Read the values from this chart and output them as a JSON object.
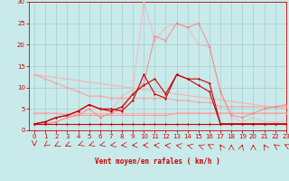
{
  "xlabel": "Vent moyen/en rafales ( km/h )",
  "xlim": [
    -0.5,
    23
  ],
  "ylim": [
    0,
    30
  ],
  "yticks": [
    0,
    5,
    10,
    15,
    20,
    25,
    30
  ],
  "xticks": [
    0,
    1,
    2,
    3,
    4,
    5,
    6,
    7,
    8,
    9,
    10,
    11,
    12,
    13,
    14,
    15,
    16,
    17,
    18,
    19,
    20,
    21,
    22,
    23
  ],
  "background_color": "#c8eaea",
  "grid_color": "#a8cccc",
  "lines": [
    {
      "x": [
        0,
        1,
        2,
        3,
        4,
        5,
        6,
        7,
        8,
        9,
        10,
        11,
        12,
        13,
        14,
        15,
        16,
        17,
        18,
        19,
        20,
        21,
        22,
        23
      ],
      "y": [
        1.5,
        1.5,
        1.5,
        1.5,
        1.5,
        1.5,
        1.5,
        1.5,
        1.5,
        1.5,
        1.5,
        1.5,
        1.5,
        1.5,
        1.5,
        1.5,
        1.5,
        1.5,
        1.5,
        1.5,
        1.5,
        1.5,
        1.5,
        1.5
      ],
      "color": "#cc0000",
      "lw": 0.8,
      "marker": "D",
      "ms": 1.5,
      "alpha": 1.0,
      "zorder": 5
    },
    {
      "x": [
        0,
        1,
        2,
        3,
        4,
        5,
        6,
        7,
        8,
        9,
        10,
        11,
        12,
        13,
        14,
        15,
        16,
        17,
        18,
        19,
        20,
        21,
        22,
        23
      ],
      "y": [
        1.5,
        2.0,
        3.0,
        3.5,
        4.5,
        6.0,
        5.0,
        4.5,
        5.5,
        8.5,
        10.5,
        12.0,
        8.5,
        13.0,
        12.0,
        10.5,
        9.0,
        1.5,
        1.5,
        1.5,
        1.5,
        1.5,
        1.5,
        1.5
      ],
      "color": "#cc0000",
      "lw": 0.8,
      "marker": "D",
      "ms": 1.5,
      "alpha": 1.0,
      "zorder": 5
    },
    {
      "x": [
        0,
        1,
        2,
        3,
        4,
        5,
        6,
        7,
        8,
        9,
        10,
        11,
        12,
        13,
        14,
        15,
        16,
        17,
        18,
        19,
        20,
        21,
        22,
        23
      ],
      "y": [
        1.5,
        2.0,
        3.0,
        3.5,
        4.5,
        6.0,
        5.0,
        5.0,
        4.5,
        7.0,
        13.0,
        8.5,
        7.5,
        13.0,
        12.0,
        12.0,
        11.0,
        1.5,
        1.5,
        1.5,
        1.5,
        1.5,
        1.5,
        1.5
      ],
      "color": "#cc0000",
      "lw": 0.8,
      "marker": "D",
      "ms": 1.5,
      "alpha": 1.0,
      "zorder": 5
    },
    {
      "x": [
        0,
        1,
        2,
        3,
        4,
        5,
        6,
        7,
        8,
        9,
        10,
        11,
        12,
        13,
        14,
        15,
        16,
        17,
        18,
        19,
        20,
        21,
        22,
        23
      ],
      "y": [
        4.0,
        4.0,
        4.0,
        3.5,
        3.5,
        3.5,
        3.5,
        3.5,
        3.5,
        3.5,
        3.5,
        3.5,
        3.5,
        4.0,
        4.0,
        4.0,
        4.0,
        4.0,
        4.0,
        4.0,
        4.0,
        4.0,
        4.0,
        4.0
      ],
      "color": "#ff9999",
      "lw": 0.8,
      "marker": "D",
      "ms": 1.5,
      "alpha": 0.9,
      "zorder": 3
    },
    {
      "x": [
        0,
        1,
        2,
        3,
        4,
        5,
        6,
        7,
        8,
        9,
        10,
        11,
        12,
        13,
        14,
        15,
        16,
        17,
        18,
        19,
        20,
        21,
        22,
        23
      ],
      "y": [
        13.0,
        12.0,
        11.0,
        10.0,
        9.0,
        8.0,
        8.0,
        7.5,
        7.5,
        7.5,
        7.5,
        7.5,
        7.5,
        7.0,
        7.0,
        6.5,
        6.5,
        5.5,
        5.5,
        5.5,
        5.5,
        5.5,
        5.5,
        5.5
      ],
      "color": "#ff9999",
      "lw": 0.8,
      "marker": "D",
      "ms": 1.5,
      "alpha": 0.9,
      "zorder": 3
    },
    {
      "x": [
        0,
        1,
        2,
        3,
        4,
        5,
        6,
        7,
        8,
        9,
        10,
        11,
        12,
        13,
        14,
        15,
        16,
        17,
        18,
        19,
        20,
        21,
        22,
        23
      ],
      "y": [
        1.5,
        1.5,
        2.0,
        3.0,
        3.5,
        5.0,
        3.0,
        4.0,
        5.0,
        8.5,
        11.0,
        22.0,
        21.0,
        25.0,
        24.0,
        25.0,
        19.5,
        9.0,
        3.5,
        3.0,
        4.0,
        5.0,
        5.5,
        6.0
      ],
      "color": "#ff7777",
      "lw": 0.8,
      "marker": "D",
      "ms": 1.5,
      "alpha": 0.75,
      "zorder": 4
    },
    {
      "x": [
        0,
        1,
        2,
        3,
        4,
        5,
        6,
        7,
        8,
        9,
        10,
        11,
        12,
        13,
        14,
        15,
        16,
        17,
        18,
        19,
        20,
        21,
        22,
        23
      ],
      "y": [
        1.5,
        1.5,
        2.0,
        3.0,
        4.0,
        5.0,
        5.0,
        4.5,
        8.0,
        9.5,
        30.0,
        21.0,
        24.0,
        25.0,
        24.0,
        20.0,
        19.5,
        9.0,
        3.0,
        2.0,
        3.0,
        2.0,
        2.0,
        2.0
      ],
      "color": "#ffaaaa",
      "lw": 0.8,
      "marker": "D",
      "ms": 1.5,
      "alpha": 0.65,
      "zorder": 3
    },
    {
      "x": [
        0,
        23
      ],
      "y": [
        13.0,
        5.0
      ],
      "color": "#ffaaaa",
      "lw": 0.8,
      "marker": null,
      "ms": 0,
      "alpha": 0.85,
      "zorder": 2
    },
    {
      "x": [
        0,
        23
      ],
      "y": [
        4.0,
        4.0
      ],
      "color": "#ffaaaa",
      "lw": 0.8,
      "marker": null,
      "ms": 0,
      "alpha": 0.85,
      "zorder": 2
    }
  ],
  "tick_fontsize": 5,
  "xlabel_fontsize": 5.5
}
